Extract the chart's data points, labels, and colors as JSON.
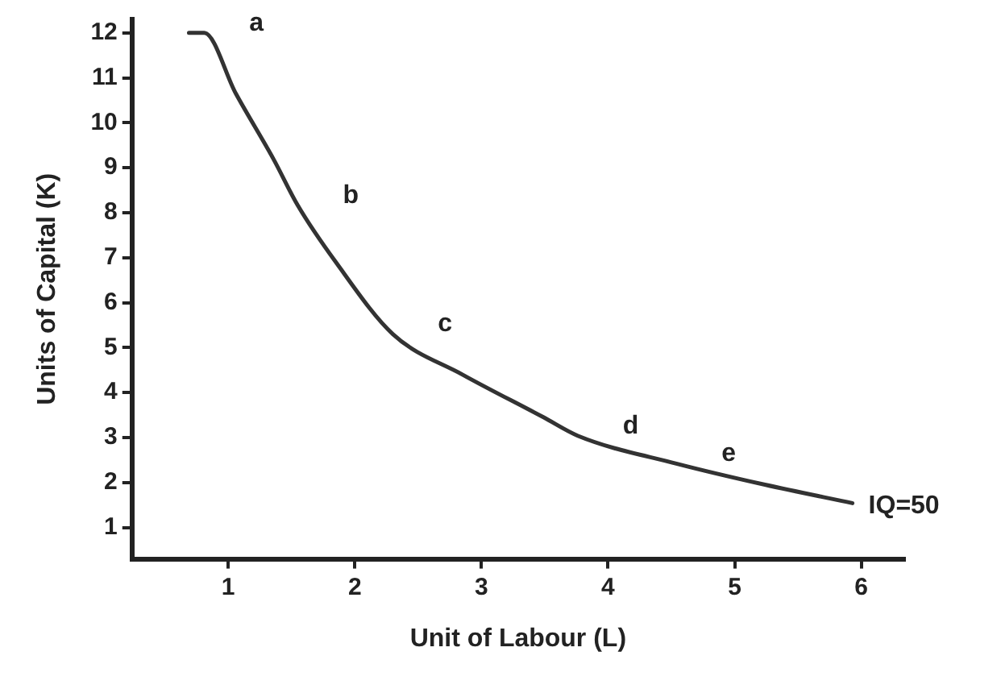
{
  "chart_data": {
    "type": "line",
    "xlabel": "Unit of Labour (L)",
    "ylabel": "Units of Capital (K)",
    "series": [
      {
        "name": "IQ=50",
        "color": "#333333",
        "x": [
          0.69,
          0.81,
          1.06,
          1.36,
          1.55,
          1.85,
          2.3,
          2.85,
          3.49,
          3.76,
          4.54,
          5.24,
          5.93
        ],
        "values": [
          12,
          12,
          10.65,
          9.18,
          8.16,
          6.9,
          5.3,
          4.4,
          3.45,
          3.04,
          2.42,
          1.95,
          1.54
        ]
      }
    ],
    "xlim": [
      0.24,
      6.34
    ],
    "xticks": [
      1,
      2,
      3,
      4,
      5,
      6
    ],
    "ylim": [
      0.3,
      12.3
    ],
    "yticks": [
      1,
      2,
      3,
      4,
      5,
      6,
      7,
      8,
      9,
      10,
      11,
      12
    ],
    "grid": false,
    "legend": false,
    "marker": "none",
    "line_style": "solid",
    "annotations": [
      {
        "text": "a",
        "x": 0.81,
        "y": 12
      },
      {
        "text": "b",
        "x": 1.55,
        "y": 8.16
      },
      {
        "text": "c",
        "x": 2.3,
        "y": 5.3
      },
      {
        "text": "d",
        "x": 3.76,
        "y": 3.04
      },
      {
        "text": "e",
        "x": 4.54,
        "y": 2.42
      }
    ]
  }
}
